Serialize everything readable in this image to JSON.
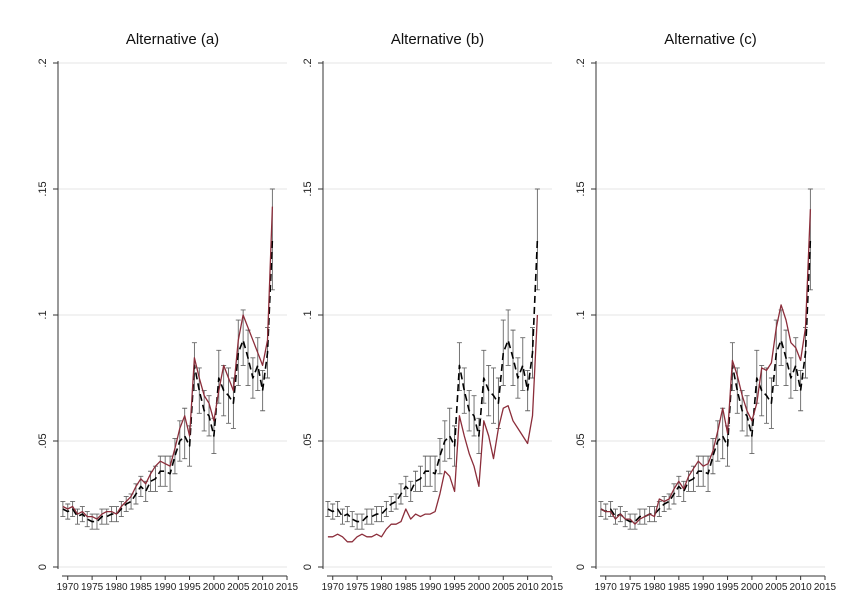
{
  "chart_data": [
    {
      "type": "line",
      "title": "Alternative (a)",
      "xlabel": "",
      "ylabel": "",
      "xlim": [
        1968,
        2015
      ],
      "ylim": [
        0,
        0.2
      ],
      "xticks": [
        1970,
        1975,
        1980,
        1985,
        1990,
        1995,
        2000,
        2005,
        2010,
        2015
      ],
      "yticks": [
        0,
        0.05,
        0.1,
        0.15,
        0.2
      ],
      "ytick_labels": [
        "0",
        ".05",
        ".1",
        ".15",
        ".2"
      ],
      "grid": true,
      "x": [
        1969,
        1970,
        1971,
        1972,
        1973,
        1974,
        1975,
        1976,
        1977,
        1978,
        1979,
        1980,
        1981,
        1982,
        1983,
        1984,
        1985,
        1986,
        1987,
        1988,
        1989,
        1990,
        1991,
        1992,
        1993,
        1994,
        1995,
        1996,
        1997,
        1998,
        1999,
        2000,
        2001,
        2002,
        2003,
        2004,
        2005,
        2006,
        2007,
        2008,
        2009,
        2010,
        2011,
        2012
      ],
      "series": [
        {
          "style": "dashed",
          "color": "#000000",
          "values": [
            0.023,
            0.022,
            0.023,
            0.02,
            0.021,
            0.019,
            0.018,
            0.018,
            0.02,
            0.02,
            0.021,
            0.021,
            0.023,
            0.025,
            0.026,
            0.029,
            0.032,
            0.03,
            0.034,
            0.035,
            0.038,
            0.038,
            0.037,
            0.044,
            0.05,
            0.052,
            0.048,
            0.08,
            0.07,
            0.062,
            0.06,
            0.052,
            0.075,
            0.07,
            0.068,
            0.065,
            0.085,
            0.09,
            0.083,
            0.075,
            0.08,
            0.07,
            0.085,
            0.13
          ],
          "err_low": [
            0.02,
            0.019,
            0.02,
            0.017,
            0.018,
            0.016,
            0.015,
            0.015,
            0.017,
            0.017,
            0.018,
            0.018,
            0.02,
            0.022,
            0.023,
            0.025,
            0.028,
            0.026,
            0.03,
            0.03,
            0.032,
            0.032,
            0.03,
            0.037,
            0.042,
            0.043,
            0.04,
            0.07,
            0.061,
            0.054,
            0.052,
            0.045,
            0.065,
            0.06,
            0.057,
            0.055,
            0.072,
            0.08,
            0.072,
            0.067,
            0.07,
            0.062,
            0.075,
            0.11
          ],
          "err_high": [
            0.026,
            0.025,
            0.026,
            0.023,
            0.024,
            0.022,
            0.021,
            0.021,
            0.023,
            0.023,
            0.024,
            0.024,
            0.026,
            0.028,
            0.029,
            0.033,
            0.036,
            0.034,
            0.038,
            0.04,
            0.044,
            0.044,
            0.044,
            0.051,
            0.058,
            0.063,
            0.056,
            0.089,
            0.079,
            0.07,
            0.068,
            0.059,
            0.086,
            0.08,
            0.079,
            0.075,
            0.098,
            0.102,
            0.094,
            0.083,
            0.091,
            0.078,
            0.095,
            0.15
          ]
        },
        {
          "style": "solid",
          "color": "#8b2d3a",
          "values": [
            0.024,
            0.023,
            0.024,
            0.021,
            0.022,
            0.02,
            0.02,
            0.019,
            0.021,
            0.022,
            0.022,
            0.021,
            0.024,
            0.026,
            0.028,
            0.032,
            0.035,
            0.033,
            0.037,
            0.04,
            0.042,
            0.041,
            0.04,
            0.047,
            0.055,
            0.06,
            0.052,
            0.083,
            0.075,
            0.068,
            0.065,
            0.058,
            0.07,
            0.08,
            0.075,
            0.07,
            0.09,
            0.1,
            0.095,
            0.09,
            0.085,
            0.08,
            0.09,
            0.143
          ]
        }
      ]
    },
    {
      "type": "line",
      "title": "Alternative (b)",
      "xlabel": "",
      "ylabel": "",
      "xlim": [
        1968,
        2015
      ],
      "ylim": [
        0,
        0.2
      ],
      "xticks": [
        1970,
        1975,
        1980,
        1985,
        1990,
        1995,
        2000,
        2005,
        2010,
        2015
      ],
      "yticks": [
        0,
        0.05,
        0.1,
        0.15,
        0.2
      ],
      "ytick_labels": [
        "0",
        ".05",
        ".1",
        ".15",
        ".2"
      ],
      "grid": true,
      "x": [
        1969,
        1970,
        1971,
        1972,
        1973,
        1974,
        1975,
        1976,
        1977,
        1978,
        1979,
        1980,
        1981,
        1982,
        1983,
        1984,
        1985,
        1986,
        1987,
        1988,
        1989,
        1990,
        1991,
        1992,
        1993,
        1994,
        1995,
        1996,
        1997,
        1998,
        1999,
        2000,
        2001,
        2002,
        2003,
        2004,
        2005,
        2006,
        2007,
        2008,
        2009,
        2010,
        2011,
        2012
      ],
      "series": [
        {
          "style": "dashed",
          "color": "#000000",
          "values": [
            0.023,
            0.022,
            0.023,
            0.02,
            0.021,
            0.019,
            0.018,
            0.018,
            0.02,
            0.02,
            0.021,
            0.021,
            0.023,
            0.025,
            0.026,
            0.029,
            0.032,
            0.03,
            0.034,
            0.035,
            0.038,
            0.038,
            0.037,
            0.044,
            0.05,
            0.052,
            0.048,
            0.08,
            0.07,
            0.062,
            0.06,
            0.052,
            0.075,
            0.07,
            0.068,
            0.065,
            0.085,
            0.09,
            0.083,
            0.075,
            0.08,
            0.07,
            0.085,
            0.13
          ],
          "err_low": [
            0.02,
            0.019,
            0.02,
            0.017,
            0.018,
            0.016,
            0.015,
            0.015,
            0.017,
            0.017,
            0.018,
            0.018,
            0.02,
            0.022,
            0.023,
            0.025,
            0.028,
            0.026,
            0.03,
            0.03,
            0.032,
            0.032,
            0.03,
            0.037,
            0.042,
            0.043,
            0.04,
            0.07,
            0.061,
            0.054,
            0.052,
            0.045,
            0.065,
            0.06,
            0.057,
            0.055,
            0.072,
            0.08,
            0.072,
            0.067,
            0.07,
            0.062,
            0.075,
            0.11
          ],
          "err_high": [
            0.026,
            0.025,
            0.026,
            0.023,
            0.024,
            0.022,
            0.021,
            0.021,
            0.023,
            0.023,
            0.024,
            0.024,
            0.026,
            0.028,
            0.029,
            0.033,
            0.036,
            0.034,
            0.038,
            0.04,
            0.044,
            0.044,
            0.044,
            0.051,
            0.058,
            0.063,
            0.056,
            0.089,
            0.079,
            0.07,
            0.068,
            0.059,
            0.086,
            0.08,
            0.079,
            0.075,
            0.098,
            0.102,
            0.094,
            0.083,
            0.091,
            0.078,
            0.095,
            0.15
          ]
        },
        {
          "style": "solid",
          "color": "#8b2d3a",
          "values": [
            0.012,
            0.012,
            0.013,
            0.012,
            0.01,
            0.01,
            0.012,
            0.013,
            0.012,
            0.012,
            0.013,
            0.012,
            0.015,
            0.017,
            0.017,
            0.018,
            0.023,
            0.019,
            0.021,
            0.02,
            0.021,
            0.021,
            0.022,
            0.029,
            0.038,
            0.036,
            0.03,
            0.06,
            0.052,
            0.045,
            0.04,
            0.032,
            0.058,
            0.052,
            0.043,
            0.055,
            0.063,
            0.064,
            0.058,
            0.055,
            0.052,
            0.049,
            0.06,
            0.1
          ]
        }
      ]
    },
    {
      "type": "line",
      "title": "Alternative (c)",
      "xlabel": "",
      "ylabel": "",
      "xlim": [
        1968,
        2015
      ],
      "ylim": [
        0,
        0.2
      ],
      "xticks": [
        1970,
        1975,
        1980,
        1985,
        1990,
        1995,
        2000,
        2005,
        2010,
        2015
      ],
      "yticks": [
        0,
        0.05,
        0.1,
        0.15,
        0.2
      ],
      "ytick_labels": [
        "0",
        ".05",
        ".1",
        ".15",
        ".2"
      ],
      "grid": true,
      "x": [
        1969,
        1970,
        1971,
        1972,
        1973,
        1974,
        1975,
        1976,
        1977,
        1978,
        1979,
        1980,
        1981,
        1982,
        1983,
        1984,
        1985,
        1986,
        1987,
        1988,
        1989,
        1990,
        1991,
        1992,
        1993,
        1994,
        1995,
        1996,
        1997,
        1998,
        1999,
        2000,
        2001,
        2002,
        2003,
        2004,
        2005,
        2006,
        2007,
        2008,
        2009,
        2010,
        2011,
        2012
      ],
      "series": [
        {
          "style": "dashed",
          "color": "#000000",
          "values": [
            0.023,
            0.022,
            0.023,
            0.02,
            0.021,
            0.019,
            0.018,
            0.018,
            0.02,
            0.02,
            0.021,
            0.021,
            0.023,
            0.025,
            0.026,
            0.029,
            0.032,
            0.03,
            0.034,
            0.035,
            0.038,
            0.038,
            0.037,
            0.044,
            0.05,
            0.052,
            0.048,
            0.08,
            0.07,
            0.062,
            0.06,
            0.052,
            0.075,
            0.07,
            0.068,
            0.065,
            0.085,
            0.09,
            0.083,
            0.075,
            0.08,
            0.07,
            0.085,
            0.13
          ],
          "err_low": [
            0.02,
            0.019,
            0.02,
            0.017,
            0.018,
            0.016,
            0.015,
            0.015,
            0.017,
            0.017,
            0.018,
            0.018,
            0.02,
            0.022,
            0.023,
            0.025,
            0.028,
            0.026,
            0.03,
            0.03,
            0.032,
            0.032,
            0.03,
            0.037,
            0.042,
            0.043,
            0.04,
            0.07,
            0.061,
            0.054,
            0.052,
            0.045,
            0.065,
            0.06,
            0.057,
            0.055,
            0.072,
            0.08,
            0.072,
            0.067,
            0.07,
            0.062,
            0.075,
            0.11
          ],
          "err_high": [
            0.026,
            0.025,
            0.026,
            0.023,
            0.024,
            0.022,
            0.021,
            0.021,
            0.023,
            0.023,
            0.024,
            0.024,
            0.026,
            0.028,
            0.029,
            0.033,
            0.036,
            0.034,
            0.038,
            0.04,
            0.044,
            0.044,
            0.044,
            0.051,
            0.058,
            0.063,
            0.056,
            0.089,
            0.079,
            0.07,
            0.068,
            0.059,
            0.086,
            0.08,
            0.079,
            0.075,
            0.098,
            0.102,
            0.094,
            0.083,
            0.091,
            0.078,
            0.095,
            0.15
          ]
        },
        {
          "style": "solid",
          "color": "#8b2d3a",
          "values": [
            0.023,
            0.022,
            0.022,
            0.019,
            0.021,
            0.019,
            0.019,
            0.017,
            0.019,
            0.02,
            0.021,
            0.02,
            0.027,
            0.026,
            0.027,
            0.031,
            0.034,
            0.031,
            0.036,
            0.039,
            0.042,
            0.04,
            0.041,
            0.046,
            0.054,
            0.063,
            0.053,
            0.082,
            0.076,
            0.068,
            0.062,
            0.058,
            0.065,
            0.079,
            0.078,
            0.081,
            0.095,
            0.104,
            0.098,
            0.089,
            0.087,
            0.082,
            0.095,
            0.142
          ]
        }
      ]
    }
  ]
}
